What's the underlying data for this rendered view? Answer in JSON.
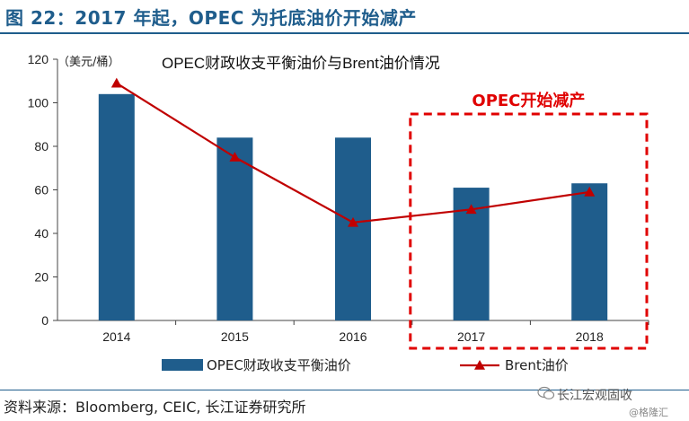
{
  "figure_title": "图 22：2017 年起，OPEC 为托底油价开始减产",
  "source": "资料来源：Bloomberg, CEIC, 长江证券研究所",
  "watermark": {
    "main": "长江宏观固收",
    "sub": "@格隆汇",
    "icon": "wechat-icon"
  },
  "colors": {
    "title": "#1f5d8c",
    "bar": "#1f5d8c",
    "line": "#c00000",
    "highlight": "#e00000"
  },
  "chart_data": {
    "type": "bar",
    "title": "OPEC财政收支平衡油价与Brent油价情况",
    "unit_label": "（美元/桶）",
    "categories": [
      "2014",
      "2015",
      "2016",
      "2017",
      "2018"
    ],
    "ylim": [
      0,
      120
    ],
    "yticks": [
      0,
      20,
      40,
      60,
      80,
      100,
      120
    ],
    "series": [
      {
        "name": "OPEC财政收支平衡油价",
        "kind": "bar",
        "values": [
          104,
          84,
          84,
          61,
          63
        ]
      },
      {
        "name": "Brent油价",
        "kind": "line",
        "marker": "triangle",
        "values": [
          109,
          75,
          45,
          51,
          59
        ]
      }
    ],
    "annotation": {
      "text": "OPEC开始减产",
      "covers": [
        "2017",
        "2018"
      ],
      "style": "dashed-box"
    },
    "legend_position": "bottom",
    "grid": false
  }
}
